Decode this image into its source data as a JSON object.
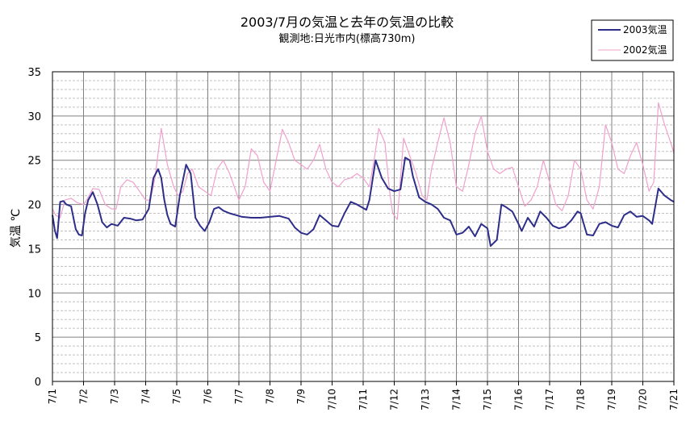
{
  "colors": {
    "series_2003": "#2e2e8a",
    "series_2002": "#f0a0cc",
    "grid_major": "#808080",
    "grid_minor": "#c0c0c0",
    "frame": "#000000"
  },
  "chart_data": {
    "type": "line",
    "title": "2003/7月の気温と去年の気温の比較",
    "subtitle": "観測地:日光市内(標高730m)",
    "ylabel": "気温 ℃",
    "xlabel": "",
    "ylim": [
      0,
      35
    ],
    "xlim": [
      1,
      21
    ],
    "yticks": [
      0,
      5,
      10,
      15,
      20,
      25,
      30,
      35
    ],
    "xtick_labels": [
      "7/1",
      "7/2",
      "7/3",
      "7/4",
      "7/5",
      "7/6",
      "7/7",
      "7/8",
      "7/9",
      "7/10",
      "7/11",
      "7/12",
      "7/13",
      "7/14",
      "7/15",
      "7/16",
      "7/17",
      "7/18",
      "7/19",
      "7/20",
      "7/21"
    ],
    "grid": "major every 5℃ (solid), minor every 1℃ (dashed), vertical every day",
    "legend_position": "top-right",
    "series": [
      {
        "name": "2003気温",
        "key": "s2003",
        "x": [
          1.0,
          1.08,
          1.15,
          1.25,
          1.35,
          1.45,
          1.6,
          1.75,
          1.85,
          1.95,
          2.05,
          2.15,
          2.3,
          2.45,
          2.6,
          2.75,
          2.9,
          3.1,
          3.3,
          3.5,
          3.7,
          3.9,
          4.1,
          4.25,
          4.4,
          4.5,
          4.6,
          4.7,
          4.8,
          4.95,
          5.1,
          5.3,
          5.45,
          5.6,
          5.75,
          5.9,
          6.05,
          6.2,
          6.35,
          6.5,
          6.7,
          6.9,
          7.1,
          7.4,
          7.7,
          8.0,
          8.3,
          8.6,
          8.8,
          9.0,
          9.2,
          9.4,
          9.6,
          9.8,
          10.0,
          10.2,
          10.4,
          10.6,
          10.8,
          11.0,
          11.1,
          11.2,
          11.4,
          11.6,
          11.8,
          12.0,
          12.2,
          12.35,
          12.5,
          12.6,
          12.8,
          13.0,
          13.2,
          13.4,
          13.6,
          13.8,
          14.0,
          14.2,
          14.4,
          14.6,
          14.8,
          15.0,
          15.1,
          15.3,
          15.45,
          15.6,
          15.8,
          16.0,
          16.1,
          16.3,
          16.5,
          16.7,
          16.9,
          17.1,
          17.3,
          17.5,
          17.7,
          17.9,
          18.0,
          18.2,
          18.4,
          18.6,
          18.8,
          19.0,
          19.2,
          19.4,
          19.6,
          19.8,
          20.0,
          20.2,
          20.3,
          20.5,
          20.7,
          20.9,
          21.0
        ],
        "y": [
          18.8,
          17.0,
          16.2,
          20.3,
          20.4,
          20.0,
          19.8,
          17.2,
          16.6,
          16.5,
          19.0,
          20.5,
          21.4,
          20.0,
          18.0,
          17.4,
          17.8,
          17.6,
          18.5,
          18.4,
          18.2,
          18.3,
          19.5,
          23.0,
          24.0,
          23.0,
          20.5,
          18.8,
          17.8,
          17.5,
          21.0,
          24.5,
          23.5,
          18.5,
          17.6,
          17.0,
          18.0,
          19.5,
          19.7,
          19.3,
          19.0,
          18.8,
          18.6,
          18.5,
          18.5,
          18.6,
          18.7,
          18.4,
          17.4,
          16.8,
          16.6,
          17.2,
          18.8,
          18.2,
          17.6,
          17.5,
          19.0,
          20.3,
          20.0,
          19.6,
          19.4,
          20.5,
          25.0,
          23.0,
          21.8,
          21.5,
          21.7,
          25.3,
          25.0,
          23.2,
          20.8,
          20.3,
          20.0,
          19.5,
          18.5,
          18.2,
          16.6,
          16.8,
          17.5,
          16.4,
          17.8,
          17.3,
          15.3,
          16.0,
          20.0,
          19.7,
          19.2,
          17.8,
          17.0,
          18.5,
          17.5,
          19.2,
          18.5,
          17.6,
          17.3,
          17.5,
          18.2,
          19.2,
          19.0,
          16.6,
          16.5,
          17.8,
          18.0,
          17.6,
          17.4,
          18.8,
          19.2,
          18.6,
          18.7,
          18.2,
          17.8,
          21.8,
          21.0,
          20.5,
          20.3
        ]
      },
      {
        "name": "2002気温",
        "key": "s2002",
        "x": [
          1.0,
          1.1,
          1.25,
          1.4,
          1.6,
          1.8,
          2.0,
          2.1,
          2.3,
          2.5,
          2.7,
          2.9,
          3.05,
          3.2,
          3.4,
          3.6,
          3.8,
          4.0,
          4.15,
          4.3,
          4.5,
          4.7,
          4.9,
          5.05,
          5.2,
          5.35,
          5.5,
          5.7,
          5.9,
          6.1,
          6.3,
          6.5,
          6.7,
          6.9,
          7.0,
          7.2,
          7.4,
          7.6,
          7.8,
          8.0,
          8.2,
          8.4,
          8.6,
          8.8,
          9.0,
          9.2,
          9.4,
          9.6,
          9.8,
          10.0,
          10.2,
          10.4,
          10.6,
          10.8,
          11.0,
          11.2,
          11.35,
          11.5,
          11.7,
          11.85,
          11.95,
          12.1,
          12.3,
          12.5,
          12.7,
          12.9,
          13.05,
          13.2,
          13.4,
          13.6,
          13.8,
          14.0,
          14.2,
          14.4,
          14.6,
          14.8,
          15.0,
          15.2,
          15.4,
          15.6,
          15.8,
          16.0,
          16.2,
          16.4,
          16.6,
          16.8,
          17.0,
          17.2,
          17.4,
          17.6,
          17.8,
          18.0,
          18.2,
          18.4,
          18.6,
          18.8,
          19.0,
          19.2,
          19.4,
          19.6,
          19.8,
          20.0,
          20.2,
          20.35,
          20.5,
          20.7,
          20.9,
          21.0
        ],
        "y": [
          19.5,
          18.8,
          18.5,
          20.5,
          20.7,
          20.2,
          20.0,
          20.5,
          21.8,
          21.7,
          20.0,
          19.5,
          19.5,
          22.0,
          22.8,
          22.5,
          21.5,
          20.5,
          20.5,
          23.0,
          28.6,
          24.5,
          22.0,
          21.0,
          21.5,
          23.5,
          24.0,
          22.0,
          21.5,
          21.0,
          24.0,
          25.0,
          23.5,
          21.5,
          20.5,
          22.0,
          26.3,
          25.5,
          22.5,
          21.5,
          25.0,
          28.5,
          27.0,
          25.0,
          24.5,
          24.0,
          25.0,
          26.8,
          24.0,
          22.5,
          22.0,
          22.8,
          23.0,
          23.5,
          23.0,
          22.0,
          25.0,
          28.6,
          27.0,
          21.5,
          19.0,
          18.3,
          27.5,
          25.5,
          23.5,
          21.0,
          20.5,
          24.0,
          27.0,
          29.8,
          27.0,
          22.0,
          21.5,
          24.5,
          28.0,
          30.0,
          26.0,
          24.0,
          23.5,
          24.0,
          24.2,
          22.0,
          19.8,
          20.5,
          22.0,
          25.0,
          22.5,
          20.0,
          19.3,
          21.0,
          25.0,
          24.0,
          20.5,
          19.5,
          22.0,
          29.0,
          27.0,
          24.0,
          23.5,
          25.5,
          27.0,
          24.5,
          21.5,
          22.5,
          31.5,
          29.0,
          27.0,
          25.8
        ]
      }
    ]
  }
}
